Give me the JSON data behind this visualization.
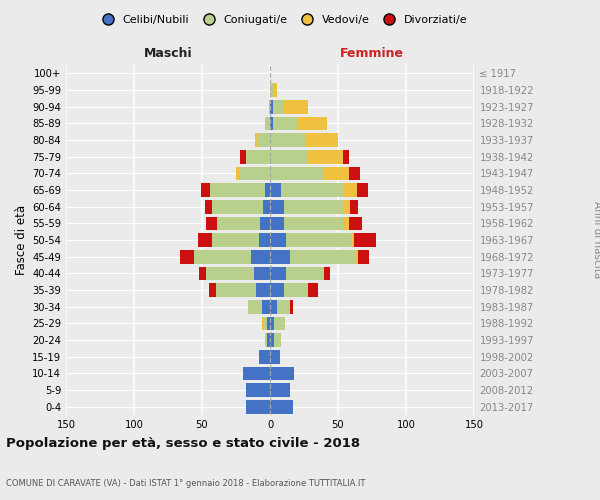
{
  "age_groups": [
    "0-4",
    "5-9",
    "10-14",
    "15-19",
    "20-24",
    "25-29",
    "30-34",
    "35-39",
    "40-44",
    "45-49",
    "50-54",
    "55-59",
    "60-64",
    "65-69",
    "70-74",
    "75-79",
    "80-84",
    "85-89",
    "90-94",
    "95-99",
    "100+"
  ],
  "birth_years": [
    "2013-2017",
    "2008-2012",
    "2003-2007",
    "1998-2002",
    "1993-1997",
    "1988-1992",
    "1983-1987",
    "1978-1982",
    "1973-1977",
    "1968-1972",
    "1963-1967",
    "1958-1962",
    "1953-1957",
    "1948-1952",
    "1943-1947",
    "1938-1942",
    "1933-1937",
    "1928-1932",
    "1923-1927",
    "1918-1922",
    "≤ 1917"
  ],
  "male": {
    "celibi": [
      18,
      18,
      20,
      8,
      2,
      2,
      6,
      10,
      12,
      14,
      8,
      7,
      5,
      4,
      0,
      0,
      0,
      0,
      0,
      0,
      0
    ],
    "coniugati": [
      0,
      0,
      0,
      0,
      2,
      3,
      10,
      30,
      35,
      42,
      35,
      32,
      38,
      40,
      22,
      18,
      9,
      4,
      1,
      0,
      0
    ],
    "vedovi": [
      0,
      0,
      0,
      0,
      0,
      1,
      0,
      0,
      0,
      0,
      0,
      0,
      0,
      0,
      3,
      0,
      2,
      0,
      0,
      0,
      0
    ],
    "divorziati": [
      0,
      0,
      0,
      0,
      0,
      0,
      0,
      5,
      5,
      10,
      10,
      8,
      5,
      7,
      0,
      4,
      0,
      0,
      0,
      0,
      0
    ]
  },
  "female": {
    "nubili": [
      17,
      15,
      18,
      7,
      3,
      3,
      5,
      10,
      12,
      15,
      12,
      10,
      10,
      8,
      0,
      0,
      0,
      2,
      2,
      0,
      0
    ],
    "coniugate": [
      0,
      0,
      0,
      0,
      5,
      8,
      10,
      18,
      28,
      48,
      48,
      44,
      44,
      46,
      40,
      28,
      26,
      18,
      8,
      2,
      0
    ],
    "vedove": [
      0,
      0,
      0,
      0,
      0,
      0,
      0,
      0,
      0,
      2,
      2,
      4,
      5,
      10,
      18,
      26,
      24,
      22,
      18,
      3,
      0
    ],
    "divorziate": [
      0,
      0,
      0,
      0,
      0,
      0,
      2,
      7,
      4,
      8,
      16,
      10,
      6,
      8,
      8,
      4,
      0,
      0,
      0,
      0,
      0
    ]
  },
  "colors": {
    "celibi": "#4472C4",
    "coniugati": "#b8d08c",
    "vedovi": "#f0c040",
    "divorziati": "#cc1010"
  },
  "xlim": 150,
  "title": "Popolazione per età, sesso e stato civile - 2018",
  "subtitle": "COMUNE DI CARAVATE (VA) - Dati ISTAT 1° gennaio 2018 - Elaborazione TUTTITALIA.IT",
  "legend_labels": [
    "Celibi/Nubili",
    "Coniugati/e",
    "Vedovi/e",
    "Divorziati/e"
  ],
  "label_maschi": "Maschi",
  "label_femmine": "Femmine",
  "ylabel_left": "Fasce di età",
  "ylabel_right": "Anni di nascita",
  "bg_color": "#ebebeb"
}
